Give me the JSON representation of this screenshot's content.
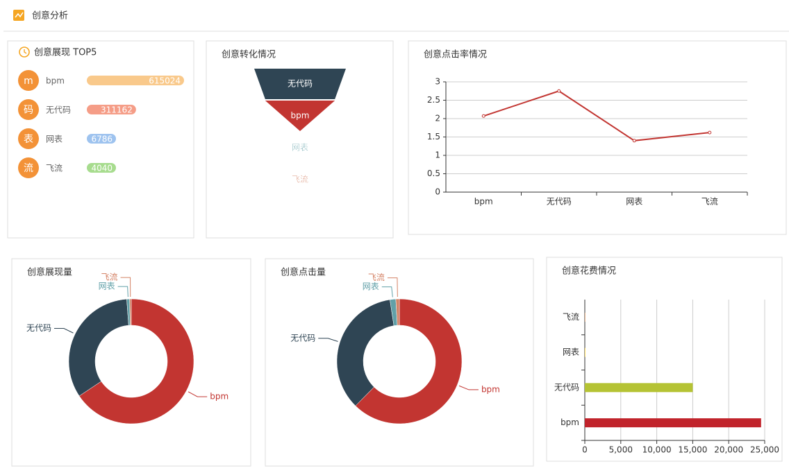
{
  "header": {
    "title": "创意分析"
  },
  "top5": {
    "title": "创意展现 TOP5",
    "items": [
      {
        "icon": "m",
        "name": "bpm",
        "value": 615024,
        "color": "#f9c98b"
      },
      {
        "icon": "码",
        "name": "无代码",
        "value": 311162,
        "color": "#f59d87"
      },
      {
        "icon": "表",
        "name": "网表",
        "value": 6786,
        "color": "#9ec3ef"
      },
      {
        "icon": "流",
        "name": "飞流",
        "value": 4040,
        "color": "#a7dc8e"
      }
    ]
  },
  "chart_data": [
    {
      "type": "funnel",
      "title": "创意转化情况",
      "categories": [
        "无代码",
        "bpm",
        "网表",
        "飞流"
      ],
      "values": [
        100,
        76,
        0,
        0
      ],
      "colors": [
        "#2f4554",
        "#c23531",
        "#61a0a8",
        "#d48265"
      ]
    },
    {
      "type": "line",
      "title": "创意点击率情况",
      "categories": [
        "bpm",
        "无代码",
        "网表",
        "飞流"
      ],
      "values": [
        2.07,
        2.75,
        1.4,
        1.62
      ],
      "color": "#c23531",
      "ylim": [
        0,
        3
      ],
      "yticks": [
        0,
        0.5,
        1,
        1.5,
        2,
        2.5,
        3
      ],
      "grid": true
    },
    {
      "type": "pie",
      "title": "创意展现量",
      "categories": [
        "bpm",
        "无代码",
        "网表",
        "飞流"
      ],
      "values": [
        615024,
        311162,
        6786,
        4040
      ],
      "colors": [
        "#c23531",
        "#2f4554",
        "#61a0a8",
        "#d48265"
      ],
      "donut": true
    },
    {
      "type": "pie",
      "title": "创意点击量",
      "categories": [
        "bpm",
        "无代码",
        "网表",
        "飞流"
      ],
      "values": [
        620,
        350,
        15,
        9
      ],
      "colors": [
        "#c23531",
        "#2f4554",
        "#61a0a8",
        "#d48265"
      ],
      "donut": true
    },
    {
      "type": "hbar",
      "title": "创意花费情况",
      "categories": [
        "bpm",
        "无代码",
        "网表",
        "飞流"
      ],
      "values": [
        24500,
        15000,
        60,
        40
      ],
      "colors": [
        "#c1232b",
        "#b5c334",
        "#fcce10",
        "#e87c25"
      ],
      "xlim": [
        0,
        25000
      ],
      "xticks": [
        0,
        {
          "value": 5000,
          "label": "5,000"
        },
        {
          "value": 10000,
          "label": "10,000"
        },
        {
          "value": 15000,
          "label": "15,000"
        },
        {
          "value": 20000,
          "label": "20,000"
        },
        {
          "value": 25000,
          "label": "25,000"
        }
      ],
      "grid": true
    }
  ]
}
